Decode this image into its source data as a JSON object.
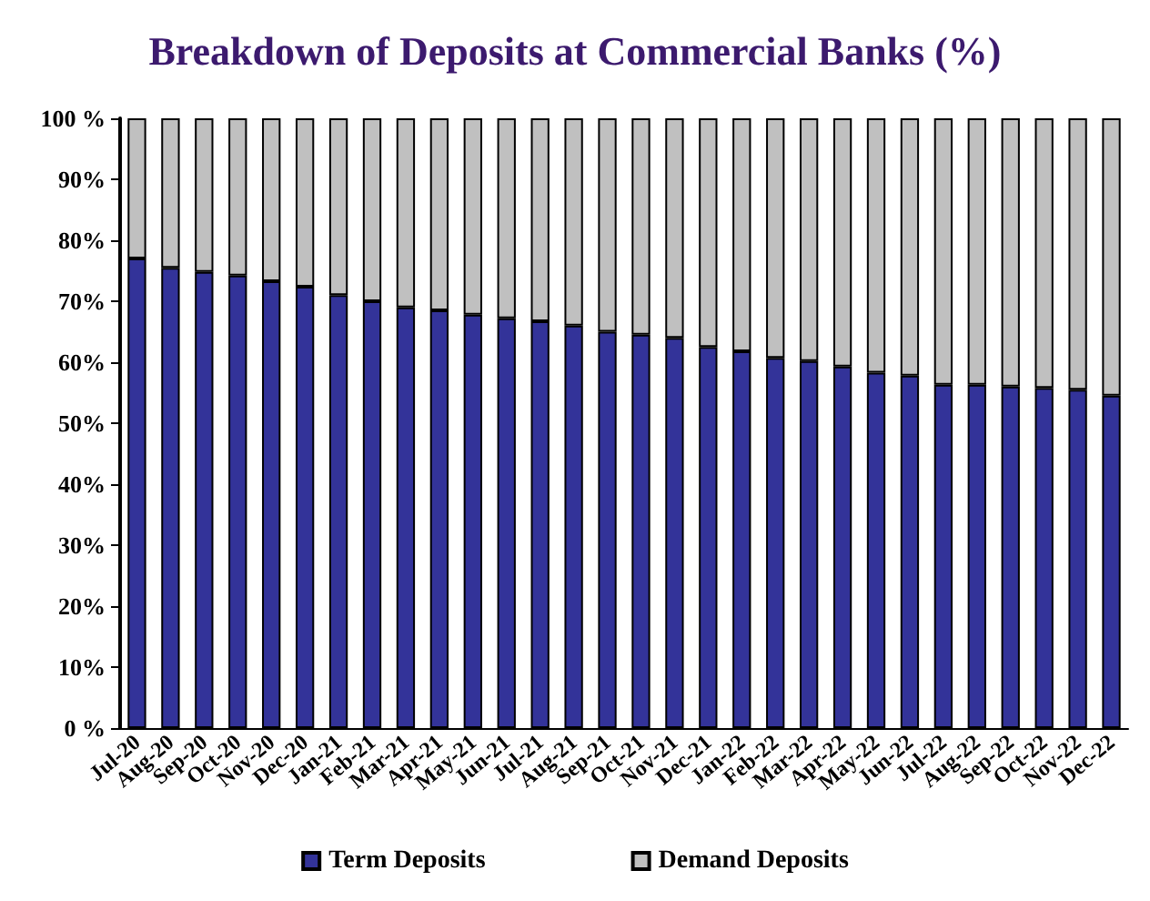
{
  "chart_data": {
    "type": "bar",
    "title": "Breakdown of Deposits at Commercial Banks (%)",
    "stacked": true,
    "categories": [
      "Jul-20",
      "Aug-20",
      "Sep-20",
      "Oct-20",
      "Nov-20",
      "Dec-20",
      "Jan-21",
      "Feb-21",
      "Mar-21",
      "Apr-21",
      "May-21",
      "Jun-21",
      "Jul-21",
      "Aug-21",
      "Sep-21",
      "Oct-21",
      "Nov-21",
      "Dec-21",
      "Jan-22",
      "Feb-22",
      "Mar-22",
      "Apr-22",
      "May-22",
      "Jun-22",
      "Jul-22",
      "Aug-22",
      "Sep-22",
      "Oct-22",
      "Nov-22",
      "Dec-22"
    ],
    "series": [
      {
        "name": "Term Deposits",
        "color": "#333399",
        "values": [
          77,
          75.5,
          74.8,
          74.2,
          73.3,
          72.4,
          71,
          70,
          69,
          68.5,
          67.8,
          67.2,
          66.7,
          66,
          65,
          64.5,
          64,
          62.5,
          61.8,
          60.7,
          60.2,
          59.3,
          58.3,
          57.8,
          56.3,
          56.3,
          56,
          55.8,
          55.5,
          54.5
        ]
      },
      {
        "name": "Demand Deposits",
        "color": "#c0c0c0",
        "values": [
          23,
          24.5,
          25.2,
          25.8,
          26.7,
          27.6,
          29,
          30,
          31,
          31.5,
          32.2,
          32.8,
          33.3,
          34,
          35,
          35.5,
          36,
          37.5,
          38.2,
          39.3,
          39.8,
          40.7,
          41.7,
          42.2,
          43.7,
          43.7,
          44,
          44.2,
          44.5,
          45.5
        ]
      }
    ],
    "ylim": [
      0,
      100
    ],
    "yticks": [
      {
        "value": 0,
        "label": "0 %"
      },
      {
        "value": 10,
        "label": "10%"
      },
      {
        "value": 20,
        "label": "20%"
      },
      {
        "value": 30,
        "label": "30%"
      },
      {
        "value": 40,
        "label": "40%"
      },
      {
        "value": 50,
        "label": "50%"
      },
      {
        "value": 60,
        "label": "60%"
      },
      {
        "value": 70,
        "label": "70%"
      },
      {
        "value": 80,
        "label": "80%"
      },
      {
        "value": 90,
        "label": "90%"
      },
      {
        "value": 100,
        "label": "100 %"
      }
    ],
    "grid": false,
    "legend": "bottom"
  }
}
